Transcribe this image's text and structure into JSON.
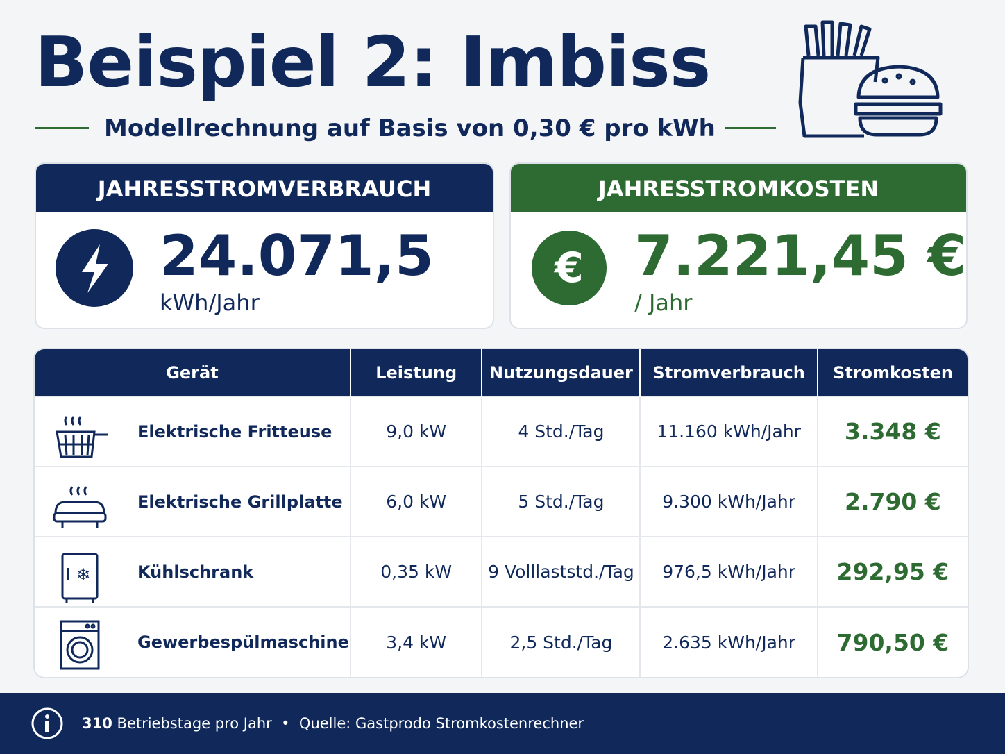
{
  "header": {
    "title": "Beispiel 2: Imbiss",
    "subtitle": "Modellrechnung auf Basis von 0,30 € pro kWh"
  },
  "cards": [
    {
      "title": "JAHRESSTROMVERBRAUCH",
      "value": "24.071,5",
      "unit": "kWh/Jahr"
    },
    {
      "title": "JAHRESSTROMKOSTEN",
      "value": "7.221,45 €",
      "unit": "/ Jahr"
    }
  ],
  "table": {
    "columns": [
      "Gerät",
      "Leistung",
      "Nutzungsdauer",
      "Stromverbrauch",
      "Stromkosten"
    ],
    "rows": [
      [
        "Elektrische Fritteuse",
        "9,0 kW",
        "4 Std./Tag",
        "11.160 kWh/Jahr",
        "3.348 €"
      ],
      [
        "Elektrische Grillplatte",
        "6,0 kW",
        "5 Std./Tag",
        "9.300 kWh/Jahr",
        "2.790 €"
      ],
      [
        "Kühlschrank",
        "0,35 kW",
        "9 Volllaststd./Tag",
        "976,5 kWh/Jahr",
        "292,95 €"
      ],
      [
        "Gewerbespülmaschine",
        "3,4 kW",
        "2,5 Std./Tag",
        "2.635 kWh/Jahr",
        "790,50 €"
      ]
    ]
  },
  "footer": {
    "days": "310",
    "days_text": "Betriebstage pro Jahr",
    "separator": "•",
    "source": "Quelle: Gastprodo Stromkostenrechner"
  }
}
